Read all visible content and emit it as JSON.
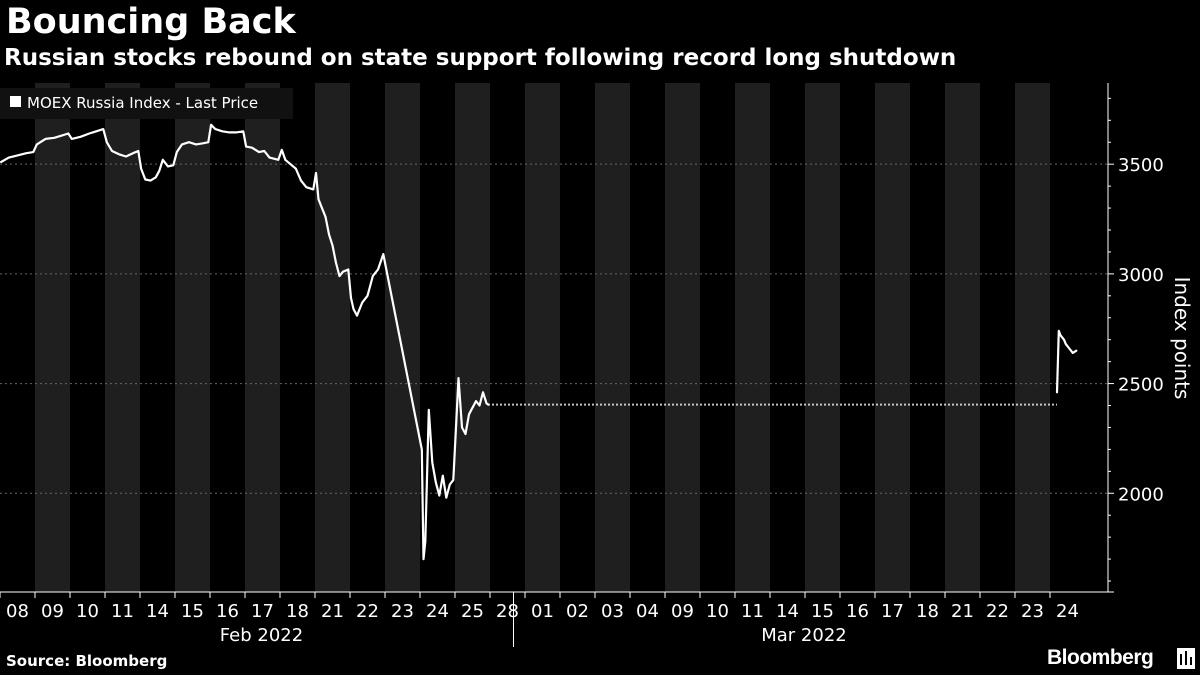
{
  "header": {
    "title": "Bouncing Back",
    "subtitle": "Russian stocks rebound on state support following record long shutdown"
  },
  "footer": {
    "source": "Source: Bloomberg",
    "brand": "Bloomberg",
    "brand_icon": "bloomberg-chart-logo-icon"
  },
  "colors": {
    "background": "#000000",
    "band": "#1f1f1f",
    "series": "#ffffff",
    "grid": "#666666",
    "text": "#ffffff"
  },
  "chart_data": {
    "type": "line",
    "title": "",
    "legend": {
      "label": "MOEX Russia Index - Last Price",
      "placement": "top-left"
    },
    "ylabel": "Index points",
    "ylim": [
      1550,
      3870
    ],
    "yticks": [
      2000,
      2500,
      3000,
      3500
    ],
    "grid": true,
    "x_categories": [
      "08",
      "09",
      "10",
      "11",
      "14",
      "15",
      "16",
      "17",
      "18",
      "21",
      "22",
      "23",
      "24",
      "25",
      "28",
      "01",
      "02",
      "03",
      "04",
      "09",
      "10",
      "11",
      "14",
      "15",
      "16",
      "17",
      "18",
      "21",
      "22",
      "23",
      "24"
    ],
    "month_groups": [
      {
        "label": "Feb 2022",
        "start": "08",
        "end": "28"
      },
      {
        "label": "Mar 2022",
        "start": "01",
        "end": "24"
      }
    ],
    "halted_period": {
      "from": "25",
      "to": "24",
      "level": 2404,
      "style": "dotted"
    },
    "series": [
      {
        "values": [
          [
            0.03,
            3510
          ],
          [
            0.25,
            3530
          ],
          [
            0.5,
            3540
          ],
          [
            0.75,
            3550
          ],
          [
            0.95,
            3555
          ],
          [
            1.05,
            3590
          ],
          [
            1.3,
            3615
          ],
          [
            1.55,
            3620
          ],
          [
            1.75,
            3630
          ],
          [
            1.95,
            3640
          ],
          [
            2.05,
            3615
          ],
          [
            2.3,
            3625
          ],
          [
            2.55,
            3640
          ],
          [
            2.75,
            3650
          ],
          [
            2.95,
            3660
          ],
          [
            3.05,
            3600
          ],
          [
            3.2,
            3560
          ],
          [
            3.4,
            3545
          ],
          [
            3.6,
            3535
          ],
          [
            3.8,
            3550
          ],
          [
            3.95,
            3560
          ],
          [
            4.03,
            3480
          ],
          [
            4.15,
            3430
          ],
          [
            4.3,
            3425
          ],
          [
            4.45,
            3440
          ],
          [
            4.55,
            3470
          ],
          [
            4.65,
            3520
          ],
          [
            4.8,
            3490
          ],
          [
            4.95,
            3495
          ],
          [
            5.05,
            3555
          ],
          [
            5.2,
            3590
          ],
          [
            5.4,
            3600
          ],
          [
            5.6,
            3590
          ],
          [
            5.8,
            3595
          ],
          [
            5.95,
            3600
          ],
          [
            6.03,
            3680
          ],
          [
            6.15,
            3660
          ],
          [
            6.35,
            3650
          ],
          [
            6.55,
            3645
          ],
          [
            6.75,
            3645
          ],
          [
            6.95,
            3650
          ],
          [
            7.03,
            3580
          ],
          [
            7.2,
            3575
          ],
          [
            7.4,
            3555
          ],
          [
            7.55,
            3560
          ],
          [
            7.7,
            3530
          ],
          [
            7.95,
            3520
          ],
          [
            8.05,
            3565
          ],
          [
            8.15,
            3520
          ],
          [
            8.3,
            3500
          ],
          [
            8.45,
            3480
          ],
          [
            8.6,
            3425
          ],
          [
            8.75,
            3395
          ],
          [
            8.95,
            3385
          ],
          [
            9.03,
            3460
          ],
          [
            9.1,
            3340
          ],
          [
            9.2,
            3300
          ],
          [
            9.3,
            3260
          ],
          [
            9.4,
            3180
          ],
          [
            9.5,
            3130
          ],
          [
            9.6,
            3050
          ],
          [
            9.7,
            2990
          ],
          [
            9.8,
            3010
          ],
          [
            9.95,
            3020
          ],
          [
            10.03,
            2890
          ],
          [
            10.1,
            2840
          ],
          [
            10.2,
            2810
          ],
          [
            10.35,
            2870
          ],
          [
            10.5,
            2900
          ],
          [
            10.65,
            2990
          ],
          [
            10.8,
            3020
          ],
          [
            10.95,
            3090
          ],
          [
            12.05,
            2200
          ],
          [
            12.1,
            1700
          ],
          [
            12.15,
            1780
          ],
          [
            12.25,
            2380
          ],
          [
            12.35,
            2140
          ],
          [
            12.45,
            2050
          ],
          [
            12.55,
            1990
          ],
          [
            12.65,
            2080
          ],
          [
            12.75,
            1980
          ],
          [
            12.85,
            2040
          ],
          [
            12.95,
            2060
          ],
          [
            13.1,
            2525
          ],
          [
            13.2,
            2300
          ],
          [
            13.3,
            2270
          ],
          [
            13.4,
            2360
          ],
          [
            13.5,
            2390
          ],
          [
            13.6,
            2420
          ],
          [
            13.7,
            2400
          ],
          [
            13.8,
            2460
          ],
          [
            13.9,
            2410
          ],
          [
            13.95,
            2404
          ]
        ]
      },
      {
        "values": [
          [
            30.2,
            2460
          ],
          [
            30.25,
            2740
          ],
          [
            30.3,
            2720
          ],
          [
            30.4,
            2700
          ],
          [
            30.45,
            2680
          ],
          [
            30.55,
            2660
          ],
          [
            30.65,
            2640
          ],
          [
            30.75,
            2650
          ]
        ]
      }
    ]
  }
}
